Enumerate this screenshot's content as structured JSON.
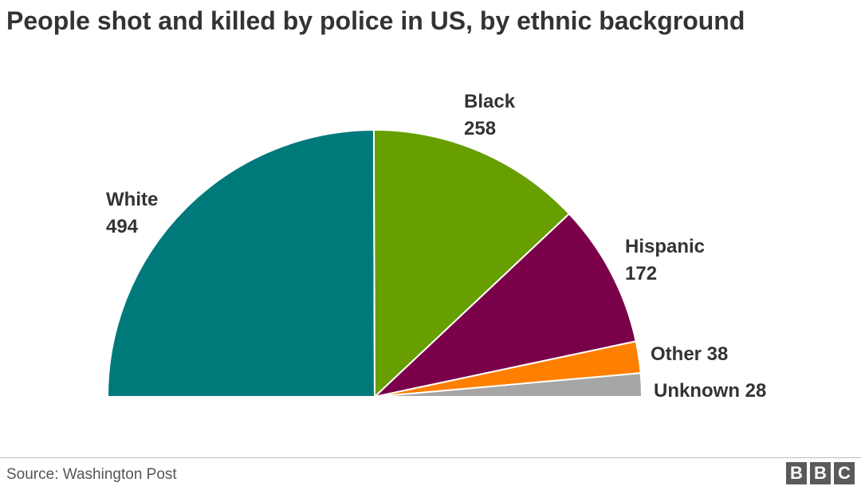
{
  "chart_data": {
    "type": "pie",
    "subtype": "half-donut-semicircle",
    "title": "People shot and killed by police in US, by ethnic background",
    "slices": [
      {
        "name": "White",
        "value": 494,
        "color": "#00797a"
      },
      {
        "name": "Black",
        "value": 258,
        "color": "#679e00"
      },
      {
        "name": "Hispanic",
        "value": 172,
        "color": "#7a004a"
      },
      {
        "name": "Other",
        "value": 38,
        "color": "#ff7f00"
      },
      {
        "name": "Unknown",
        "value": 28,
        "color": "#a6a6a6"
      }
    ]
  },
  "footer": {
    "source": "Source:  Washington Post"
  },
  "logo": {
    "letters": [
      "B",
      "B",
      "C"
    ]
  }
}
